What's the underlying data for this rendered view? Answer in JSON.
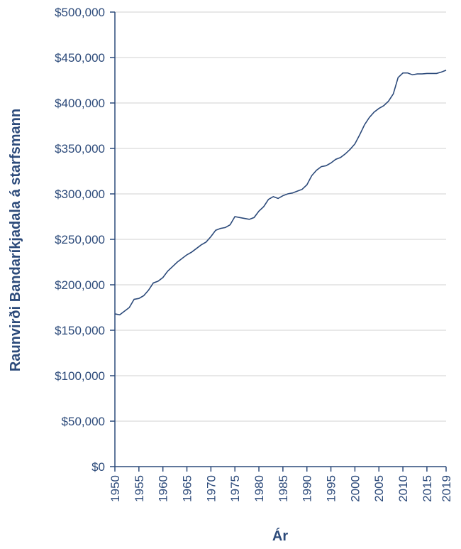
{
  "chart_data": {
    "type": "line",
    "title": "",
    "xlabel": "Ár",
    "ylabel": "Raunvirði Bandaríkjadala á starfsmann",
    "xlim": [
      1950,
      2019
    ],
    "ylim": [
      0,
      500000
    ],
    "grid": "horizontal",
    "x_ticks": [
      "1950",
      "1955",
      "1960",
      "1965",
      "1970",
      "1975",
      "1980",
      "1985",
      "1990",
      "1995",
      "2000",
      "2005",
      "2010",
      "2015",
      "2019"
    ],
    "y_ticks": [
      "$0",
      "$50,000",
      "$100,000",
      "$150,000",
      "$200,000",
      "$250,000",
      "$300,000",
      "$350,000",
      "$400,000",
      "$450,000",
      "$500,000"
    ],
    "series": [
      {
        "color": "#2c4a7a",
        "x": [
          1950,
          1951,
          1952,
          1953,
          1954,
          1955,
          1956,
          1957,
          1958,
          1959,
          1960,
          1961,
          1962,
          1963,
          1964,
          1965,
          1966,
          1967,
          1968,
          1969,
          1970,
          1971,
          1972,
          1973,
          1974,
          1975,
          1976,
          1977,
          1978,
          1979,
          1980,
          1981,
          1982,
          1983,
          1984,
          1985,
          1986,
          1987,
          1988,
          1989,
          1990,
          1991,
          1992,
          1993,
          1994,
          1995,
          1996,
          1997,
          1998,
          1999,
          2000,
          2001,
          2002,
          2003,
          2004,
          2005,
          2006,
          2007,
          2008,
          2009,
          2010,
          2011,
          2012,
          2013,
          2014,
          2015,
          2016,
          2017,
          2018,
          2019
        ],
        "values": [
          168000,
          167000,
          171000,
          175000,
          184000,
          185000,
          188000,
          194000,
          202000,
          204000,
          208000,
          215000,
          220000,
          225000,
          229000,
          233000,
          236000,
          240000,
          244000,
          247000,
          253000,
          260000,
          262000,
          263000,
          266000,
          275000,
          274000,
          273000,
          272000,
          274000,
          281000,
          286000,
          294000,
          297000,
          295000,
          298000,
          300000,
          301000,
          303000,
          305000,
          310000,
          320000,
          326000,
          330000,
          331000,
          334000,
          338000,
          340000,
          344000,
          349000,
          355000,
          365000,
          376000,
          384000,
          390000,
          394000,
          397000,
          402000,
          410000,
          428000,
          433000,
          433000,
          431000,
          432000,
          432000,
          432500,
          432500,
          432500,
          434000,
          436000
        ]
      }
    ]
  }
}
